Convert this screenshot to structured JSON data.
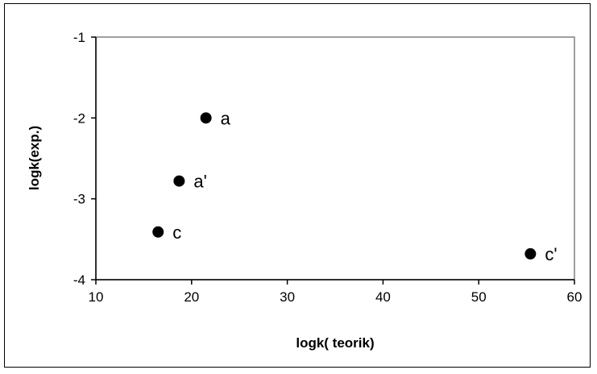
{
  "chart_data": {
    "type": "scatter",
    "xlabel": "logk( teorik)",
    "ylabel": "logk(exp.)",
    "xlim": [
      10,
      60
    ],
    "ylim": [
      -4,
      -1
    ],
    "x_ticks": [
      "10",
      "20",
      "30",
      "40",
      "50",
      "60"
    ],
    "y_ticks": [
      "-1",
      "-2",
      "-3",
      "-4"
    ],
    "grid": false,
    "legend": "none",
    "points": [
      {
        "label": "a",
        "x": 21.5,
        "y": -2.0
      },
      {
        "label": "a'",
        "x": 18.7,
        "y": -2.78
      },
      {
        "label": "c",
        "x": 16.5,
        "y": -3.41
      },
      {
        "label": "c'",
        "x": 55.4,
        "y": -3.68
      }
    ],
    "colors": {
      "marker": "#000000",
      "plot_border": "#808080",
      "axis": "#000000"
    }
  }
}
